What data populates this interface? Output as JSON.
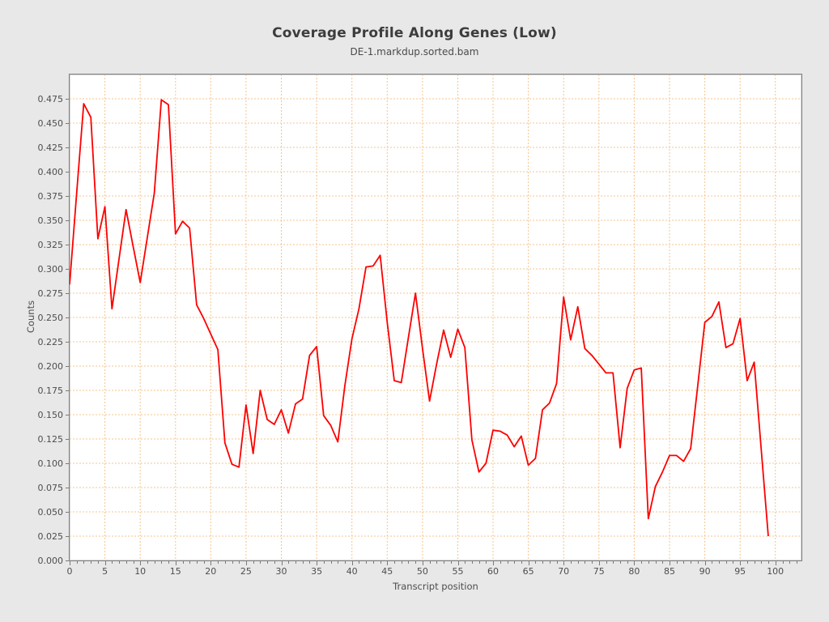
{
  "chart_data": {
    "type": "line",
    "title": "Coverage Profile Along Genes (Low)",
    "subtitle": "DE-1.markdup.sorted.bam",
    "xlabel": "Transcript position",
    "ylabel": "Counts",
    "xlim": [
      0,
      103.7
    ],
    "ylim": [
      0,
      0.5
    ],
    "x_major_ticks": [
      0,
      5,
      10,
      15,
      20,
      25,
      30,
      35,
      40,
      45,
      50,
      55,
      60,
      65,
      70,
      75,
      80,
      85,
      90,
      95,
      100
    ],
    "x_minor_tick_step": 1,
    "x_minor_tick_max": 103,
    "y_tick_min": 0.0,
    "y_tick_max": 0.475,
    "y_tick_step": 0.025,
    "y_tick_decimals": 3,
    "grid": true,
    "legend": "none",
    "x_start": 0,
    "x_step": 1,
    "series": [
      {
        "name": "DE-1.markdup.sorted.bam",
        "values": [
          0.284,
          0.378,
          0.47,
          0.456,
          0.331,
          0.364,
          0.259,
          0.31,
          0.361,
          0.323,
          0.286,
          0.332,
          0.378,
          0.474,
          0.469,
          0.336,
          0.349,
          0.342,
          0.263,
          0.249,
          0.233,
          0.217,
          0.121,
          0.099,
          0.096,
          0.16,
          0.11,
          0.175,
          0.145,
          0.14,
          0.155,
          0.131,
          0.161,
          0.166,
          0.211,
          0.22,
          0.149,
          0.139,
          0.122,
          0.18,
          0.228,
          0.259,
          0.302,
          0.303,
          0.314,
          0.245,
          0.185,
          0.183,
          0.229,
          0.275,
          0.218,
          0.164,
          0.202,
          0.237,
          0.209,
          0.238,
          0.219,
          0.124,
          0.091,
          0.1,
          0.134,
          0.133,
          0.129,
          0.117,
          0.128,
          0.098,
          0.105,
          0.155,
          0.162,
          0.182,
          0.271,
          0.227,
          0.261,
          0.218,
          0.211,
          0.202,
          0.193,
          0.193,
          0.116,
          0.177,
          0.196,
          0.198,
          0.043,
          0.076,
          0.091,
          0.108,
          0.108,
          0.102,
          0.115,
          0.18,
          0.245,
          0.251,
          0.266,
          0.219,
          0.223,
          0.249,
          0.185,
          0.204,
          0.114,
          0.025
        ]
      }
    ]
  },
  "colors": {
    "background": "#e8e8e8",
    "plot_background": "#ffffff",
    "line": "#fe0000",
    "grid": "#f5c48e",
    "frame": "#808080",
    "title_text": "#3d3d3d",
    "subtitle_text": "#4a4a4a",
    "axis_text": "#4d4d4d"
  }
}
